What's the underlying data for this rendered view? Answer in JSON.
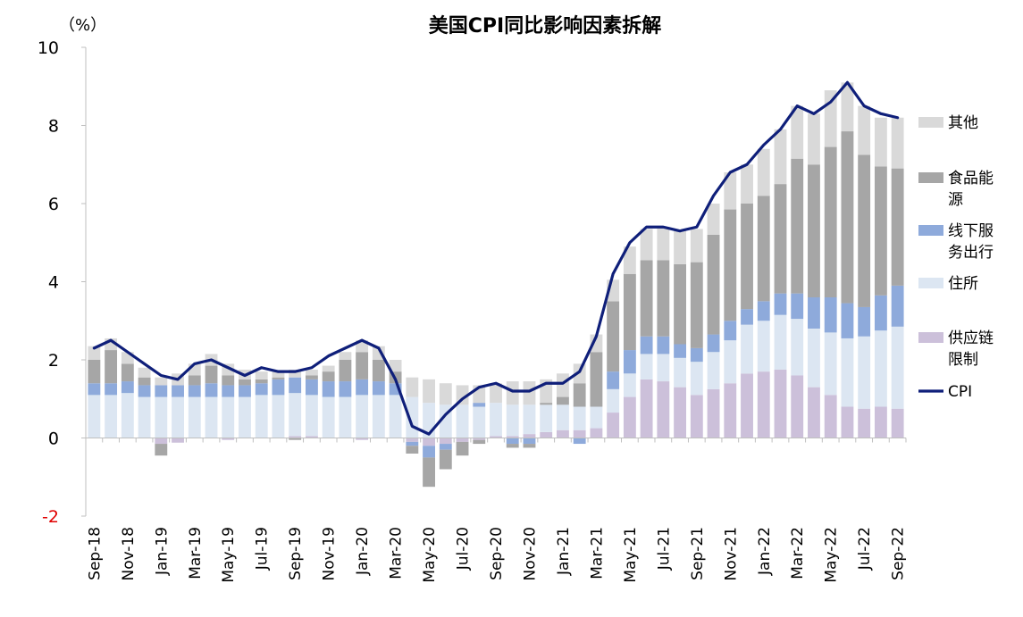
{
  "chart_data": {
    "type": "bar",
    "stacked": true,
    "title": "美国CPI同比影响因素拆解",
    "unit_label": "（%）",
    "ylim": [
      -2,
      10
    ],
    "yticks": [
      "10",
      "8",
      "6",
      "4",
      "2",
      "0",
      "-2"
    ],
    "ytick_values": [
      10,
      8,
      6,
      4,
      2,
      0,
      -2
    ],
    "categories": [
      "Sep-18",
      "Oct-18",
      "Nov-18",
      "Dec-18",
      "Jan-19",
      "Feb-19",
      "Mar-19",
      "Apr-19",
      "May-19",
      "Jun-19",
      "Jul-19",
      "Aug-19",
      "Sep-19",
      "Oct-19",
      "Nov-19",
      "Dec-19",
      "Jan-20",
      "Feb-20",
      "Mar-20",
      "Apr-20",
      "May-20",
      "Jun-20",
      "Jul-20",
      "Aug-20",
      "Sep-20",
      "Oct-20",
      "Nov-20",
      "Dec-20",
      "Jan-21",
      "Feb-21",
      "Mar-21",
      "Apr-21",
      "May-21",
      "Jun-21",
      "Jul-21",
      "Aug-21",
      "Sep-21",
      "Oct-21",
      "Nov-21",
      "Dec-21",
      "Jan-22",
      "Feb-22",
      "Mar-22",
      "Apr-22",
      "May-22",
      "Jun-22",
      "Jul-22",
      "Aug-22",
      "Sep-22"
    ],
    "x_tick_labels": [
      "Sep-18",
      "Nov-18",
      "Jan-19",
      "Mar-19",
      "May-19",
      "Jul-19",
      "Sep-19",
      "Nov-19",
      "Jan-20",
      "Mar-20",
      "May-20",
      "Jul-20",
      "Sep-20",
      "Nov-20",
      "Jan-21",
      "Mar-21",
      "May-21",
      "Jul-21",
      "Sep-21",
      "Nov-21",
      "Jan-22",
      "Mar-22",
      "May-22",
      "Jul-22",
      "Sep-22"
    ],
    "series": [
      {
        "name": "供应链限制",
        "key": "supply",
        "color": "#ccc0da",
        "values": [
          0,
          0,
          0,
          0,
          -0.15,
          -0.12,
          0,
          0,
          -0.05,
          0,
          0,
          0,
          0.05,
          0.05,
          0,
          0,
          -0.05,
          0,
          0,
          -0.1,
          -0.2,
          -0.15,
          -0.1,
          -0.05,
          0.05,
          0.05,
          0.1,
          0.15,
          0.2,
          0.2,
          0.25,
          0.65,
          1.05,
          1.5,
          1.45,
          1.3,
          1.1,
          1.25,
          1.4,
          1.65,
          1.7,
          1.75,
          1.6,
          1.3,
          1.1,
          0.8,
          0.75,
          0.8,
          0.75
        ]
      },
      {
        "name": "住所",
        "key": "shelter",
        "color": "#dce6f2",
        "values": [
          1.1,
          1.1,
          1.15,
          1.05,
          1.05,
          1.05,
          1.05,
          1.05,
          1.05,
          1.05,
          1.1,
          1.1,
          1.1,
          1.05,
          1.05,
          1.05,
          1.1,
          1.1,
          1.1,
          1.05,
          0.9,
          0.85,
          0.85,
          0.8,
          0.85,
          0.8,
          0.75,
          0.7,
          0.65,
          0.6,
          0.55,
          0.6,
          0.6,
          0.65,
          0.7,
          0.75,
          0.85,
          0.95,
          1.1,
          1.25,
          1.3,
          1.4,
          1.45,
          1.5,
          1.6,
          1.75,
          1.85,
          1.95,
          2.1
        ]
      },
      {
        "name": "线下服务出行",
        "key": "services",
        "color": "#8eaadb",
        "values": [
          0.3,
          0.3,
          0.3,
          0.3,
          0.3,
          0.3,
          0.3,
          0.35,
          0.3,
          0.3,
          0.3,
          0.4,
          0.4,
          0.4,
          0.4,
          0.4,
          0.4,
          0.35,
          0.3,
          -0.1,
          -0.3,
          -0.15,
          0,
          0.1,
          0,
          -0.15,
          -0.15,
          0,
          0,
          -0.15,
          0,
          0.45,
          0.6,
          0.45,
          0.45,
          0.35,
          0.35,
          0.45,
          0.5,
          0.4,
          0.5,
          0.55,
          0.65,
          0.8,
          0.9,
          0.9,
          0.75,
          0.9,
          1.05
        ]
      },
      {
        "name": "食品能源",
        "key": "food_energy",
        "color": "#a6a6a6",
        "values": [
          0.6,
          0.85,
          0.45,
          0.2,
          -0.3,
          0,
          0.25,
          0.45,
          0.25,
          0.15,
          0.1,
          0.05,
          -0.05,
          0.1,
          0.25,
          0.55,
          0.7,
          0.55,
          0.3,
          -0.2,
          -0.75,
          -0.5,
          -0.35,
          -0.1,
          0,
          -0.1,
          -0.1,
          0.05,
          0.2,
          0.6,
          1.4,
          1.8,
          1.95,
          1.95,
          1.95,
          2.05,
          2.2,
          2.55,
          2.85,
          2.7,
          2.7,
          2.8,
          3.45,
          3.4,
          3.85,
          4.4,
          3.9,
          3.3,
          3.0
        ]
      },
      {
        "name": "其他",
        "key": "other",
        "color": "#d9d9d9",
        "values": [
          0.35,
          0.3,
          0.3,
          0.25,
          0.2,
          0.3,
          0.3,
          0.3,
          0.3,
          0.25,
          0.2,
          0.15,
          0.2,
          0.15,
          0.15,
          0.2,
          0.3,
          0.35,
          0.3,
          0.5,
          0.6,
          0.55,
          0.5,
          0.45,
          0.5,
          0.6,
          0.6,
          0.6,
          0.6,
          0.5,
          0.45,
          0.55,
          0.7,
          0.8,
          0.85,
          0.85,
          0.85,
          0.8,
          0.95,
          1.0,
          1.2,
          1.4,
          1.35,
          1.3,
          1.45,
          1.25,
          1.25,
          1.25,
          1.3
        ]
      }
    ],
    "line": {
      "name": "CPI",
      "color": "#0f1f7a",
      "values": [
        2.3,
        2.5,
        2.2,
        1.9,
        1.6,
        1.5,
        1.9,
        2.0,
        1.8,
        1.6,
        1.8,
        1.7,
        1.7,
        1.8,
        2.1,
        2.3,
        2.5,
        2.3,
        1.5,
        0.3,
        0.1,
        0.6,
        1.0,
        1.3,
        1.4,
        1.2,
        1.2,
        1.4,
        1.4,
        1.7,
        2.6,
        4.2,
        5.0,
        5.4,
        5.4,
        5.3,
        5.4,
        6.2,
        6.8,
        7.0,
        7.5,
        7.9,
        8.5,
        8.3,
        8.6,
        9.1,
        8.5,
        8.3,
        8.2
      ]
    },
    "legend": [
      {
        "key": "other",
        "lines": [
          "其他"
        ]
      },
      {
        "key": "food_energy",
        "lines": [
          "食品能",
          "源"
        ]
      },
      {
        "key": "services",
        "lines": [
          "线下服",
          "务出行"
        ]
      },
      {
        "key": "shelter",
        "lines": [
          "住所"
        ]
      },
      {
        "key": "supply",
        "lines": [
          "供应链",
          "限制"
        ]
      },
      {
        "key": "cpi",
        "lines": [
          "CPI"
        ]
      }
    ]
  }
}
